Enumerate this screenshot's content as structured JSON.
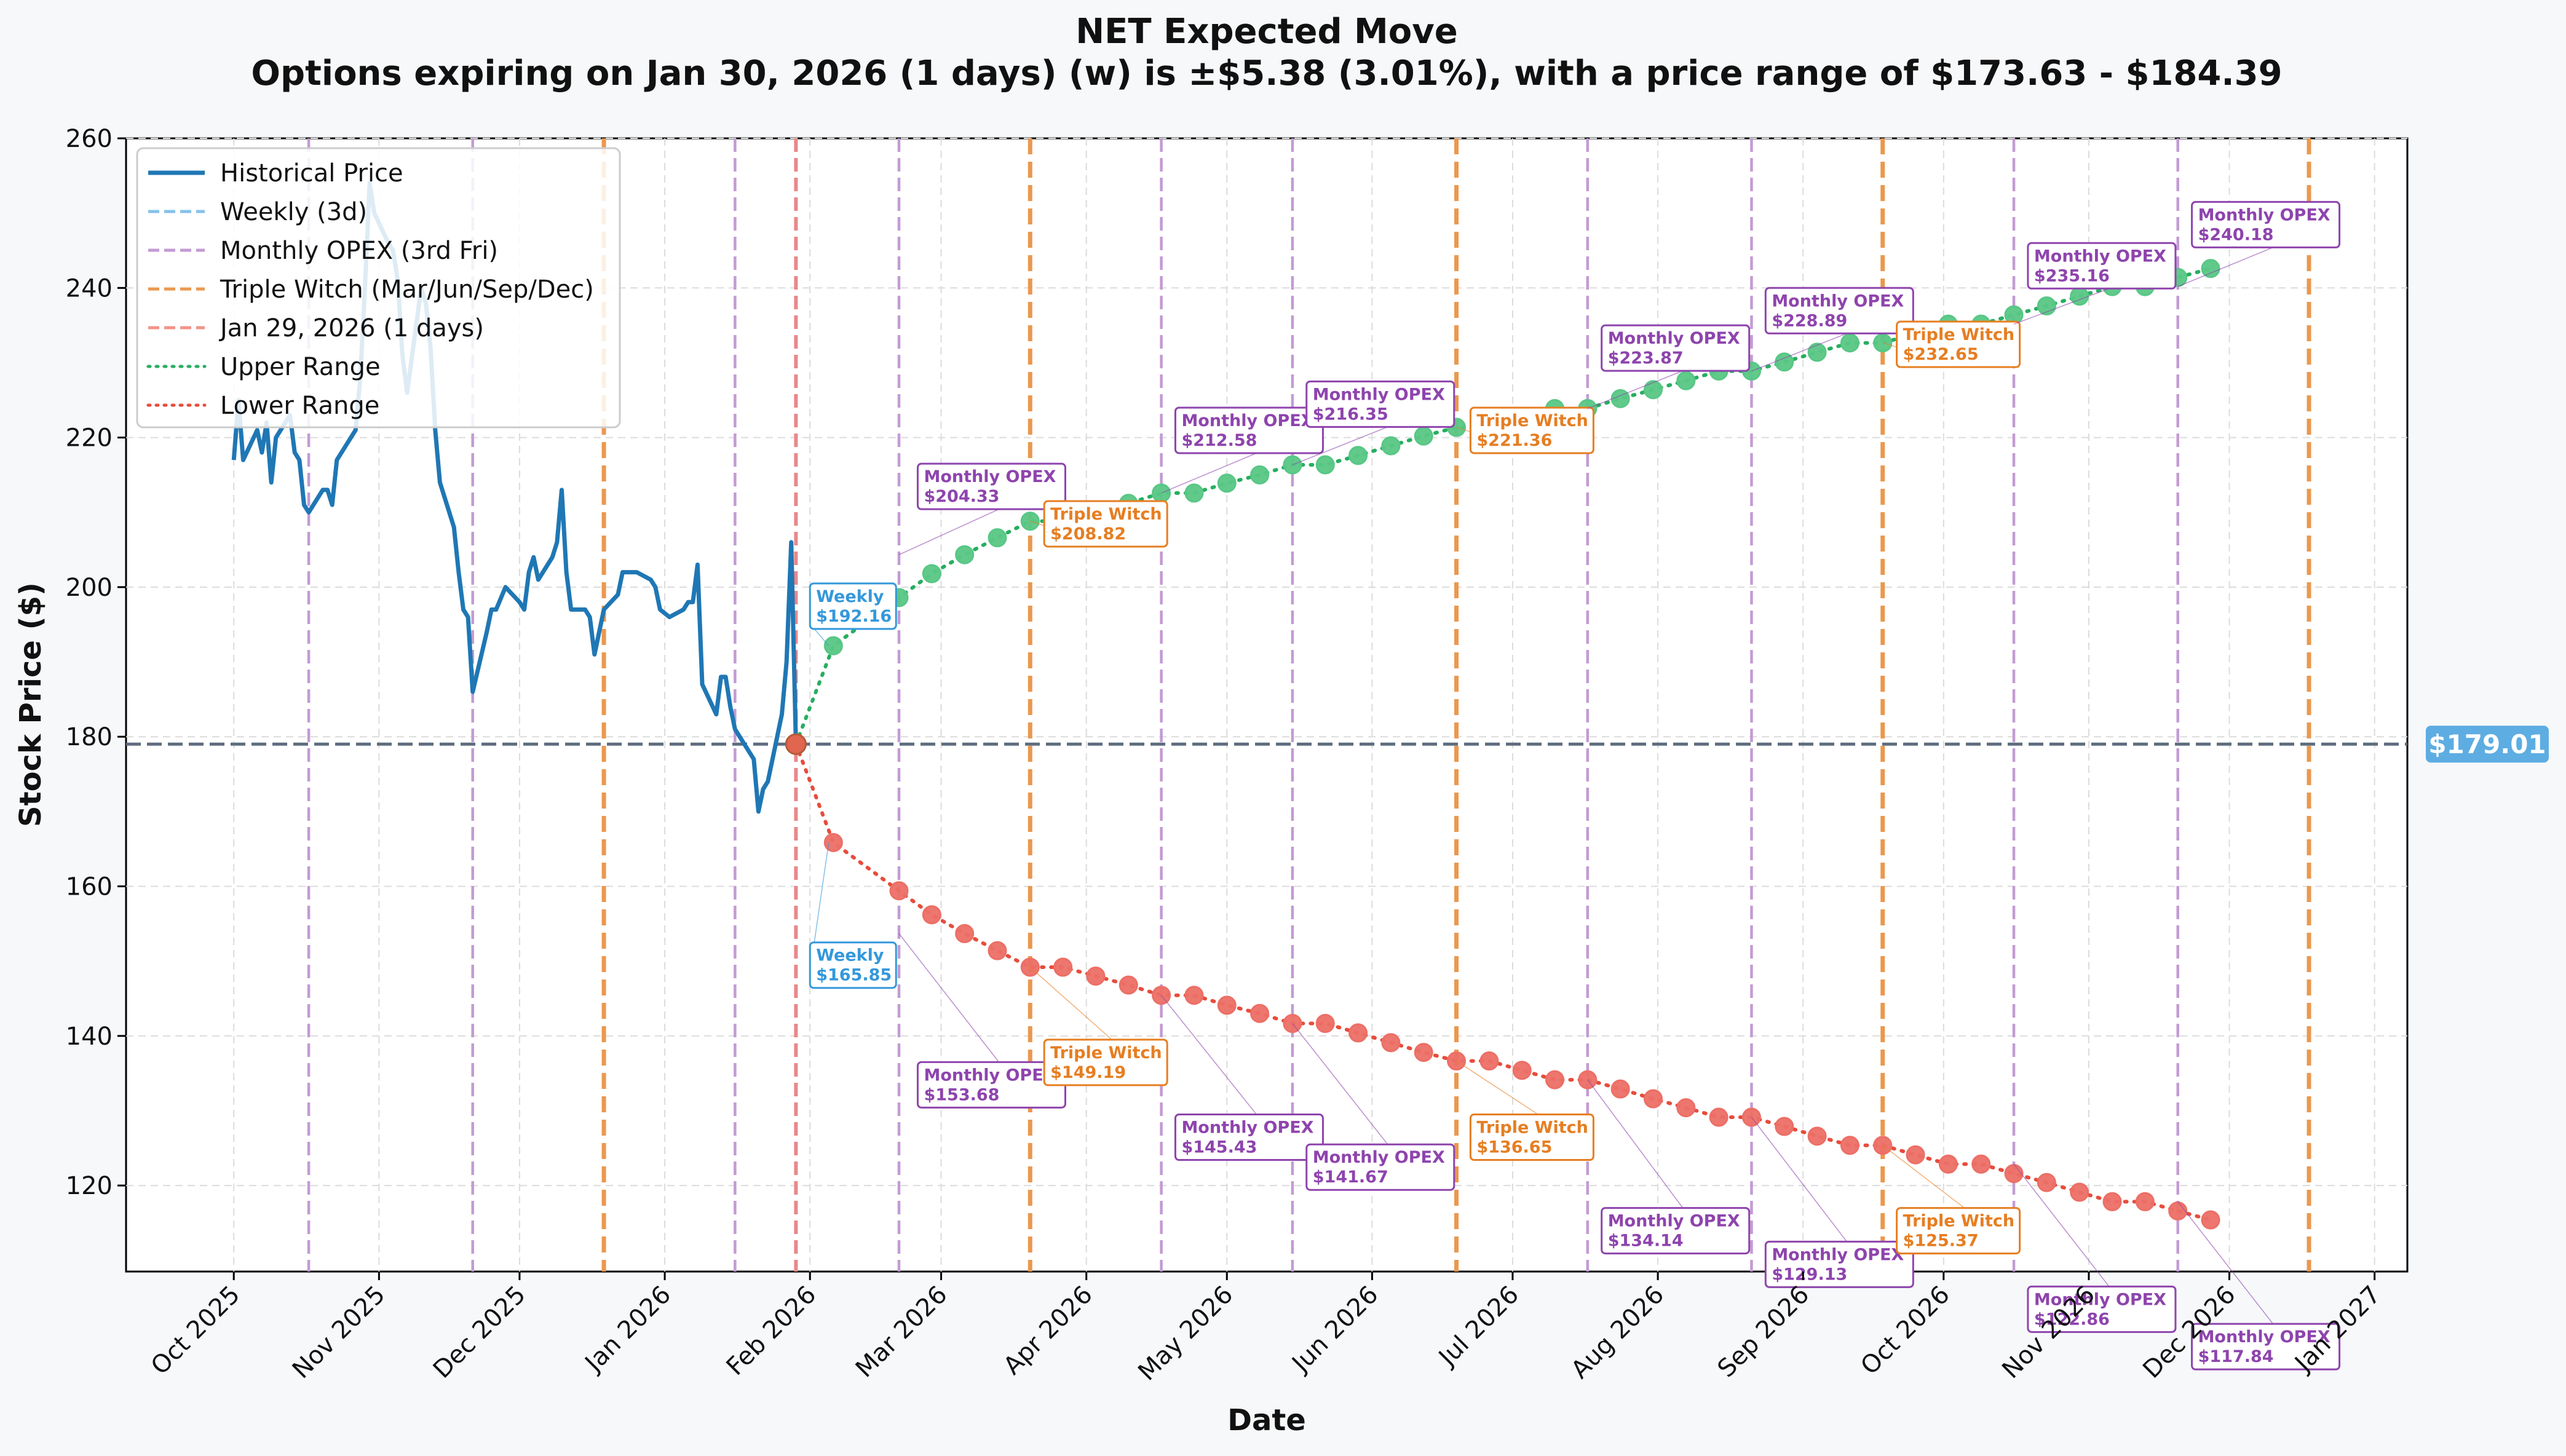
{
  "chart_data": {
    "type": "line",
    "title": "NET Expected Move",
    "subtitle": "Options expiring on Jan 30, 2026 (1 days) (w) is ±$5.38 (3.01%), with a price range of $173.63 - $184.39",
    "xlabel": "Date",
    "ylabel": "Stock Price ($)",
    "ylim": [
      108.5,
      260
    ],
    "xlim": [
      "2025-09-08",
      "2027-01-08"
    ],
    "x_ticks": [
      {
        "date": "2025-10-01",
        "label": "Oct 2025"
      },
      {
        "date": "2025-11-01",
        "label": "Nov 2025"
      },
      {
        "date": "2025-12-01",
        "label": "Dec 2025"
      },
      {
        "date": "2026-01-01",
        "label": "Jan 2026"
      },
      {
        "date": "2026-02-01",
        "label": "Feb 2026"
      },
      {
        "date": "2026-03-01",
        "label": "Mar 2026"
      },
      {
        "date": "2026-04-01",
        "label": "Apr 2026"
      },
      {
        "date": "2026-05-01",
        "label": "May 2026"
      },
      {
        "date": "2026-06-01",
        "label": "Jun 2026"
      },
      {
        "date": "2026-07-01",
        "label": "Jul 2026"
      },
      {
        "date": "2026-08-01",
        "label": "Aug 2026"
      },
      {
        "date": "2026-09-01",
        "label": "Sep 2026"
      },
      {
        "date": "2026-10-01",
        "label": "Oct 2026"
      },
      {
        "date": "2026-11-01",
        "label": "Nov 2026"
      },
      {
        "date": "2026-12-01",
        "label": "Dec 2026"
      },
      {
        "date": "2027-01-01",
        "label": "Jan 2027"
      }
    ],
    "y_ticks": [
      120,
      140,
      160,
      180,
      200,
      220,
      240,
      260
    ],
    "grid": true,
    "legend_position": "top-left",
    "current_price": 179.01,
    "current_price_label": "$179.01",
    "legend": [
      {
        "label": "Historical Price",
        "style": "solid",
        "color": "#1f77b4"
      },
      {
        "label": "Weekly (3d)",
        "style": "dashed",
        "color": "#85c1e9"
      },
      {
        "label": "Monthly OPEX (3rd Fri)",
        "style": "dashed",
        "color": "#c39bd3"
      },
      {
        "label": "Triple Witch (Mar/Jun/Sep/Dec)",
        "style": "dashed",
        "color": "#eb984e"
      },
      {
        "label": "Jan 29, 2026 (1 days)",
        "style": "dashed",
        "color": "#f1948a"
      },
      {
        "label": "Upper Range",
        "style": "dotted",
        "color": "#27ae60"
      },
      {
        "label": "Lower Range",
        "style": "dotted",
        "color": "#e74c3c"
      }
    ],
    "vertical_lines": {
      "monthly": [
        "2025-10-17",
        "2025-11-21",
        "2026-01-16",
        "2026-02-20",
        "2026-04-17",
        "2026-05-15",
        "2026-07-17",
        "2026-08-21",
        "2026-10-16",
        "2026-11-20"
      ],
      "triple": [
        "2025-12-19",
        "2026-03-20",
        "2026-06-19",
        "2026-09-18",
        "2026-12-18"
      ],
      "current": "2026-01-29"
    },
    "historical": {
      "name": "Historical Price",
      "x": [
        "2025-10-01",
        "2025-10-02",
        "2025-10-03",
        "2025-10-06",
        "2025-10-07",
        "2025-10-08",
        "2025-10-09",
        "2025-10-10",
        "2025-10-13",
        "2025-10-14",
        "2025-10-15",
        "2025-10-16",
        "2025-10-17",
        "2025-10-20",
        "2025-10-21",
        "2025-10-22",
        "2025-10-23",
        "2025-10-24",
        "2025-10-27",
        "2025-10-28",
        "2025-10-29",
        "2025-10-30",
        "2025-10-31",
        "2025-11-03",
        "2025-11-04",
        "2025-11-05",
        "2025-11-06",
        "2025-11-07",
        "2025-11-10",
        "2025-11-11",
        "2025-11-12",
        "2025-11-13",
        "2025-11-14",
        "2025-11-17",
        "2025-11-18",
        "2025-11-19",
        "2025-11-20",
        "2025-11-21",
        "2025-11-24",
        "2025-11-25",
        "2025-11-26",
        "2025-11-28",
        "2025-12-01",
        "2025-12-02",
        "2025-12-03",
        "2025-12-04",
        "2025-12-05",
        "2025-12-08",
        "2025-12-09",
        "2025-12-10",
        "2025-12-11",
        "2025-12-12",
        "2025-12-15",
        "2025-12-16",
        "2025-12-17",
        "2025-12-18",
        "2025-12-19",
        "2025-12-22",
        "2025-12-23",
        "2025-12-24",
        "2025-12-26",
        "2025-12-29",
        "2025-12-30",
        "2025-12-31",
        "2026-01-02",
        "2026-01-05",
        "2026-01-06",
        "2026-01-07",
        "2026-01-08",
        "2026-01-09",
        "2026-01-12",
        "2026-01-13",
        "2026-01-14",
        "2026-01-15",
        "2026-01-16",
        "2026-01-20",
        "2026-01-21",
        "2026-01-22",
        "2026-01-23",
        "2026-01-26",
        "2026-01-27",
        "2026-01-28",
        "2026-01-29"
      ],
      "y": [
        217,
        225,
        217,
        221,
        218,
        222,
        214,
        220,
        223,
        218,
        217,
        211,
        210,
        213,
        213,
        211,
        217,
        218,
        221,
        228,
        240,
        254,
        250,
        246,
        245,
        241,
        231,
        226,
        240,
        238,
        232,
        221,
        214,
        208,
        202,
        197,
        196,
        186,
        194,
        197,
        197,
        200,
        198,
        197,
        202,
        204,
        201,
        204,
        206,
        213,
        202,
        197,
        197,
        196,
        191,
        194,
        197,
        199,
        202,
        202,
        202,
        201,
        200,
        197,
        196,
        197,
        198,
        198,
        203,
        187,
        183,
        188,
        188,
        184,
        181,
        177,
        170,
        173,
        174,
        183,
        190,
        206,
        179
      ]
    },
    "projection_dates": [
      "2026-01-29",
      "2026-02-06",
      "2026-02-13",
      "2026-02-20",
      "2026-02-27",
      "2026-03-06",
      "2026-03-13",
      "2026-03-20",
      "2026-03-27",
      "2026-04-03",
      "2026-04-10",
      "2026-04-17",
      "2026-04-24",
      "2026-05-01",
      "2026-05-08",
      "2026-05-15",
      "2026-05-22",
      "2026-05-29",
      "2026-06-05",
      "2026-06-12",
      "2026-06-19",
      "2026-06-26",
      "2026-07-03",
      "2026-07-10",
      "2026-07-17",
      "2026-07-24",
      "2026-07-31",
      "2026-08-07",
      "2026-08-14",
      "2026-08-21",
      "2026-08-28",
      "2026-09-04",
      "2026-09-11",
      "2026-09-18",
      "2026-09-25",
      "2026-10-02",
      "2026-10-09",
      "2026-10-16",
      "2026-10-23",
      "2026-10-30",
      "2026-11-06",
      "2026-11-13",
      "2026-11-20",
      "2026-11-27",
      "2026-12-04",
      "2026-12-11",
      "2026-12-18"
    ],
    "series": [
      {
        "name": "Upper Range",
        "values": [
          179.01,
          192.16,
          198.6,
          201.8,
          204.33,
          206.6,
          208.82,
          208.82,
          210.0,
          211.2,
          212.58,
          212.58,
          213.9,
          215.0,
          216.35,
          216.35,
          217.6,
          218.9,
          220.2,
          221.36,
          221.36,
          222.6,
          223.87,
          223.87,
          225.2,
          226.4,
          227.6,
          228.89,
          228.89,
          230.1,
          231.4,
          232.65,
          232.65,
          233.9,
          235.16,
          235.16,
          236.4,
          237.6,
          238.9,
          240.18,
          240.18,
          241.4,
          242.6
        ]
      },
      {
        "name": "Lower Range",
        "values": [
          179.01,
          165.85,
          159.4,
          156.2,
          153.68,
          151.4,
          149.19,
          149.19,
          148.0,
          146.8,
          145.43,
          145.43,
          144.1,
          143.0,
          141.67,
          141.67,
          140.4,
          139.1,
          137.8,
          136.65,
          136.65,
          135.4,
          134.14,
          134.14,
          132.9,
          131.6,
          130.4,
          129.13,
          129.13,
          127.9,
          126.6,
          125.37,
          125.37,
          124.1,
          122.86,
          122.86,
          121.6,
          120.4,
          119.1,
          117.84,
          117.84,
          116.6,
          115.4
        ]
      }
    ],
    "projection_x_index": [
      0,
      1,
      3,
      4,
      5,
      6,
      7,
      8,
      9,
      10,
      11,
      12,
      13,
      14,
      15,
      16,
      17,
      18,
      19,
      20,
      21,
      22,
      23,
      24,
      25,
      26,
      27,
      28,
      29,
      30,
      31,
      32,
      33,
      34,
      35,
      36,
      37,
      38,
      39,
      40,
      41,
      42,
      43
    ],
    "annotations": [
      {
        "kind": "weekly",
        "label": "Weekly",
        "value": "$192.16",
        "date": "2026-02-05",
        "y": 192.16,
        "box_date": "2026-02-01",
        "box_y": 200.5
      },
      {
        "kind": "monthly",
        "label": "Monthly OPEX",
        "value": "$204.33",
        "date": "2026-02-20",
        "y": 204.33,
        "box_date": "2026-02-24",
        "box_y": 216.5
      },
      {
        "kind": "triple",
        "label": "Triple Witch",
        "value": "$208.82",
        "date": "2026-03-20",
        "y": 208.82,
        "box_date": "2026-03-23",
        "box_y": 211.5
      },
      {
        "kind": "monthly",
        "label": "Monthly OPEX",
        "value": "$212.58",
        "date": "2026-04-17",
        "y": 212.58,
        "box_date": "2026-04-20",
        "box_y": 224
      },
      {
        "kind": "monthly",
        "label": "Monthly OPEX",
        "value": "$216.35",
        "date": "2026-05-15",
        "y": 216.35,
        "box_date": "2026-05-18",
        "box_y": 227.5
      },
      {
        "kind": "triple",
        "label": "Triple Witch",
        "value": "$221.36",
        "date": "2026-06-19",
        "y": 221.36,
        "box_date": "2026-06-22",
        "box_y": 224
      },
      {
        "kind": "monthly",
        "label": "Monthly OPEX",
        "value": "$223.87",
        "date": "2026-07-17",
        "y": 223.87,
        "box_date": "2026-07-20",
        "box_y": 235
      },
      {
        "kind": "monthly",
        "label": "Monthly OPEX",
        "value": "$228.89",
        "date": "2026-08-21",
        "y": 228.89,
        "box_date": "2026-08-24",
        "box_y": 240
      },
      {
        "kind": "triple",
        "label": "Triple Witch",
        "value": "$232.65",
        "date": "2026-09-18",
        "y": 232.65,
        "box_date": "2026-09-21",
        "box_y": 235.5
      },
      {
        "kind": "monthly",
        "label": "Monthly OPEX",
        "value": "$235.16",
        "date": "2026-10-16",
        "y": 235.16,
        "box_date": "2026-10-19",
        "box_y": 246
      },
      {
        "kind": "monthly",
        "label": "Monthly OPEX",
        "value": "$240.18",
        "date": "2026-11-20",
        "y": 240.18,
        "box_date": "2026-11-23",
        "box_y": 251.5
      },
      {
        "kind": "weekly",
        "label": "Weekly",
        "value": "$165.85",
        "date": "2026-02-05",
        "y": 165.85,
        "box_date": "2026-02-01",
        "box_y": 152.5
      },
      {
        "kind": "monthly",
        "label": "Monthly OPEX",
        "value": "$153.68",
        "date": "2026-02-20",
        "y": 153.68,
        "box_date": "2026-02-24",
        "box_y": 136.5
      },
      {
        "kind": "triple",
        "label": "Triple Witch",
        "value": "$149.19",
        "date": "2026-03-20",
        "y": 149.19,
        "box_date": "2026-03-23",
        "box_y": 139.5
      },
      {
        "kind": "monthly",
        "label": "Monthly OPEX",
        "value": "$145.43",
        "date": "2026-04-17",
        "y": 145.43,
        "box_date": "2026-04-20",
        "box_y": 129.5
      },
      {
        "kind": "monthly",
        "label": "Monthly OPEX",
        "value": "$141.67",
        "date": "2026-05-15",
        "y": 141.67,
        "box_date": "2026-05-18",
        "box_y": 125.5
      },
      {
        "kind": "triple",
        "label": "Triple Witch",
        "value": "$136.65",
        "date": "2026-06-19",
        "y": 136.65,
        "box_date": "2026-06-22",
        "box_y": 129.5
      },
      {
        "kind": "monthly",
        "label": "Monthly OPEX",
        "value": "$134.14",
        "date": "2026-07-17",
        "y": 134.14,
        "box_date": "2026-07-20",
        "box_y": 117
      },
      {
        "kind": "monthly",
        "label": "Monthly OPEX",
        "value": "$129.13",
        "date": "2026-08-21",
        "y": 129.13,
        "box_date": "2026-08-24",
        "box_y": 112.5
      },
      {
        "kind": "triple",
        "label": "Triple Witch",
        "value": "$125.37",
        "date": "2026-09-18",
        "y": 125.37,
        "box_date": "2026-09-21",
        "box_y": 117
      },
      {
        "kind": "monthly",
        "label": "Monthly OPEX",
        "value": "$122.86",
        "date": "2026-10-16",
        "y": 122.86,
        "box_date": "2026-10-19",
        "box_y": 106.5
      },
      {
        "kind": "monthly",
        "label": "Monthly OPEX",
        "value": "$117.84",
        "date": "2026-11-20",
        "y": 117.84,
        "box_date": "2026-11-23",
        "box_y": 101.5
      }
    ],
    "colors": {
      "historical": "#1f77b4",
      "weekly": "#3498db",
      "monthly": "#8e44ad",
      "monthly_line": "#c39bd3",
      "triple": "#e67e22",
      "triple_line": "#eb984e",
      "current_line": "#e8888a",
      "upper": "#27ae60",
      "upper_marker": "#58c785",
      "lower": "#e74c3c",
      "lower_marker": "#ec6f66",
      "current_price_line": "#5d6d7e",
      "current_price_badge": "#5dade2"
    }
  }
}
